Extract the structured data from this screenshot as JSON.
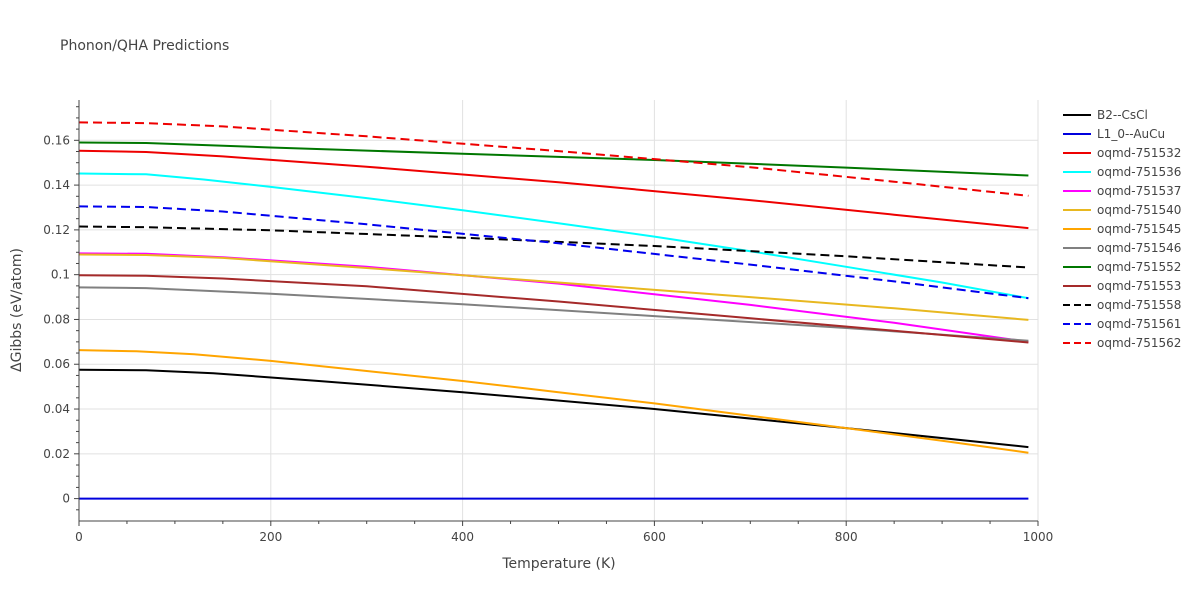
{
  "chart_data": {
    "type": "line",
    "title": "Phonon/QHA Predictions",
    "xlabel": "Temperature (K)",
    "ylabel": "ΔGibbs (eV/atom)",
    "xlim": [
      0,
      1000
    ],
    "ylim": [
      -0.01,
      0.178
    ],
    "xticks": [
      0,
      200,
      400,
      600,
      800,
      1000
    ],
    "xtick_labels": [
      "0",
      "200",
      "400",
      "600",
      "800",
      "1000"
    ],
    "yticks": [
      0,
      0.02,
      0.04,
      0.06,
      0.08,
      0.1,
      0.12,
      0.14,
      0.16
    ],
    "ytick_labels": [
      "0",
      "0.02",
      "0.04",
      "0.06",
      "0.08",
      "0.1",
      "0.12",
      "0.14",
      "0.16"
    ],
    "grid": true,
    "legend_position": "right",
    "series": [
      {
        "name": "B2--CsCl",
        "color": "#000000",
        "dash": "solid",
        "x": [
          0,
          70,
          140,
          250,
          400,
          600,
          800,
          990
        ],
        "y": [
          0.0575,
          0.0573,
          0.056,
          0.0525,
          0.0475,
          0.04,
          0.0315,
          0.023
        ]
      },
      {
        "name": "L1_0--AuCu",
        "color": "#0000dd",
        "dash": "solid",
        "x": [
          0,
          990
        ],
        "y": [
          0.0,
          0.0
        ]
      },
      {
        "name": "oqmd-751532",
        "color": "#ee0000",
        "dash": "solid",
        "x": [
          0,
          70,
          150,
          300,
          500,
          700,
          850,
          990
        ],
        "y": [
          0.1553,
          0.1548,
          0.1528,
          0.1482,
          0.1413,
          0.1333,
          0.1268,
          0.1208
        ]
      },
      {
        "name": "oqmd-751536",
        "color": "#00ffff",
        "dash": "solid",
        "x": [
          0,
          70,
          130,
          200,
          300,
          400,
          500,
          600,
          700,
          800,
          900,
          990
        ],
        "y": [
          0.1452,
          0.1448,
          0.1425,
          0.1392,
          0.1342,
          0.1288,
          0.123,
          0.117,
          0.1105,
          0.1035,
          0.0965,
          0.0895
        ]
      },
      {
        "name": "oqmd-751537",
        "color": "#ff00ff",
        "dash": "solid",
        "x": [
          0,
          70,
          150,
          300,
          500,
          700,
          850,
          990
        ],
        "y": [
          0.1095,
          0.1093,
          0.1078,
          0.1035,
          0.096,
          0.0865,
          0.0785,
          0.07
        ]
      },
      {
        "name": "oqmd-751540",
        "color": "#e8b820",
        "dash": "solid",
        "x": [
          0,
          70,
          150,
          300,
          500,
          700,
          850,
          990
        ],
        "y": [
          0.109,
          0.1088,
          0.1075,
          0.103,
          0.0965,
          0.09,
          0.085,
          0.0798
        ]
      },
      {
        "name": "oqmd-751545",
        "color": "#ffa500",
        "dash": "solid",
        "x": [
          0,
          60,
          120,
          200,
          300,
          400,
          500,
          600,
          700,
          800,
          900,
          990
        ],
        "y": [
          0.0663,
          0.0658,
          0.0645,
          0.0615,
          0.057,
          0.0525,
          0.0475,
          0.0425,
          0.037,
          0.0315,
          0.0258,
          0.0205
        ]
      },
      {
        "name": "oqmd-751546",
        "color": "#808080",
        "dash": "solid",
        "x": [
          0,
          70,
          200,
          400,
          600,
          800,
          990
        ],
        "y": [
          0.0943,
          0.094,
          0.0915,
          0.0868,
          0.0815,
          0.0762,
          0.0705
        ]
      },
      {
        "name": "oqmd-751552",
        "color": "#007700",
        "dash": "solid",
        "x": [
          0,
          70,
          200,
          400,
          600,
          800,
          990
        ],
        "y": [
          0.159,
          0.1588,
          0.1568,
          0.154,
          0.1512,
          0.1478,
          0.1443
        ]
      },
      {
        "name": "oqmd-751553",
        "color": "#a52a2a",
        "dash": "solid",
        "x": [
          0,
          70,
          150,
          300,
          500,
          700,
          850,
          990
        ],
        "y": [
          0.0997,
          0.0995,
          0.0983,
          0.0948,
          0.088,
          0.0805,
          0.075,
          0.0697
        ]
      },
      {
        "name": "oqmd-751558",
        "color": "#000000",
        "dash": "dash",
        "x": [
          0,
          70,
          200,
          400,
          600,
          800,
          990
        ],
        "y": [
          0.1215,
          0.1212,
          0.1198,
          0.1165,
          0.1128,
          0.1082,
          0.1032
        ]
      },
      {
        "name": "oqmd-751561",
        "color": "#0000ee",
        "dash": "dash",
        "x": [
          0,
          70,
          150,
          300,
          500,
          700,
          850,
          990
        ],
        "y": [
          0.1305,
          0.1302,
          0.1282,
          0.1225,
          0.114,
          0.1045,
          0.097,
          0.0895
        ]
      },
      {
        "name": "oqmd-751562",
        "color": "#ee0000",
        "dash": "dash",
        "x": [
          0,
          70,
          150,
          300,
          500,
          700,
          850,
          990
        ],
        "y": [
          0.168,
          0.1677,
          0.1662,
          0.1618,
          0.1552,
          0.148,
          0.1415,
          0.1352
        ]
      }
    ]
  }
}
